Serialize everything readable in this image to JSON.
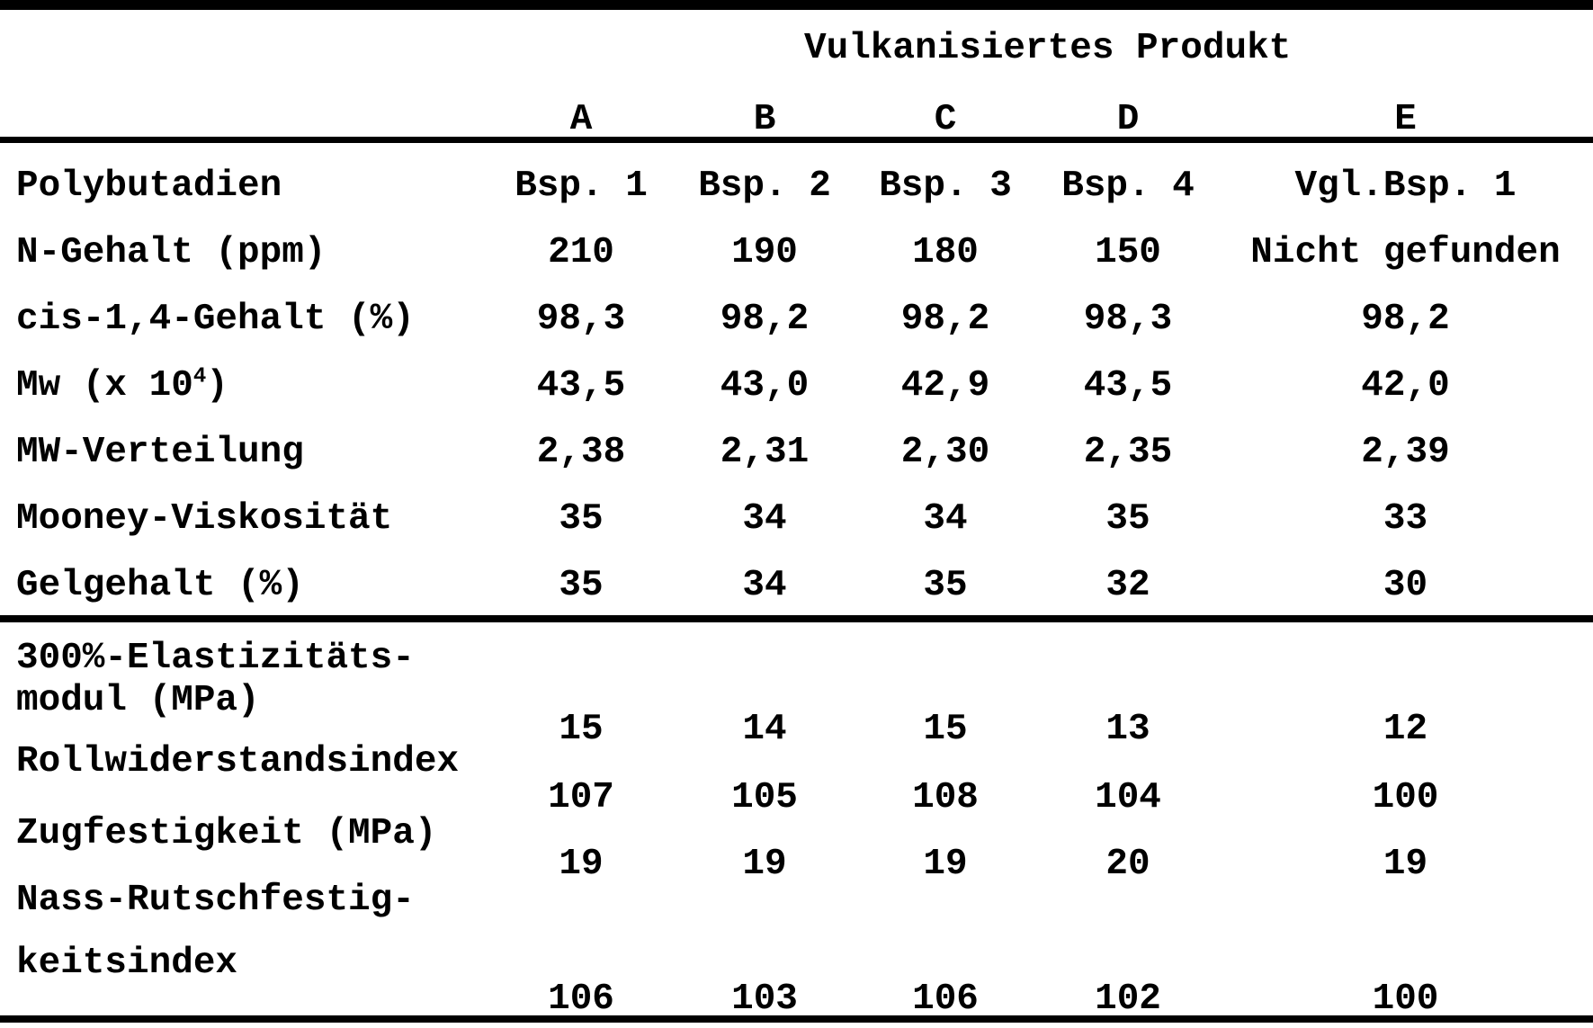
{
  "table": {
    "title": "Vulkanisiertes Produkt",
    "column_letters": [
      "A",
      "B",
      "C",
      "D",
      "E"
    ],
    "section1_rows": [
      {
        "label": "Polybutadien",
        "values": [
          "Bsp. 1",
          "Bsp. 2",
          "Bsp. 3",
          "Bsp. 4",
          "Vgl.Bsp. 1"
        ]
      },
      {
        "label": "N-Gehalt (ppm)",
        "values": [
          "210",
          "190",
          "180",
          "150",
          "Nicht gefunden"
        ]
      },
      {
        "label": "cis-1,4-Gehalt (%)",
        "values": [
          "98,3",
          "98,2",
          "98,2",
          "98,3",
          "98,2"
        ]
      },
      {
        "label_pre": "Mw (x 10",
        "label_sup": "4",
        "label_post": ")",
        "values": [
          "43,5",
          "43,0",
          "42,9",
          "43,5",
          "42,0"
        ]
      },
      {
        "label": "MW-Verteilung",
        "values": [
          "2,38",
          "2,31",
          "2,30",
          "2,35",
          "2,39"
        ]
      },
      {
        "label": "Mooney-Viskosität",
        "values": [
          "35",
          "34",
          "34",
          "35",
          "33"
        ]
      },
      {
        "label": "Gelgehalt (%)",
        "values": [
          "35",
          "34",
          "35",
          "32",
          "30"
        ]
      }
    ],
    "section2_rows": [
      {
        "label_line1": "300%-Elastizitäts-",
        "label_line2": "modul (MPa)",
        "values": [
          "15",
          "14",
          "15",
          "13",
          "12"
        ]
      },
      {
        "label_line1": "Rollwiderstandsindex",
        "values": [
          "107",
          "105",
          "108",
          "104",
          "100"
        ]
      },
      {
        "label_line1": "Zugfestigkeit (MPa)",
        "values": [
          "19",
          "19",
          "19",
          "20",
          "19"
        ]
      },
      {
        "label_line1": "Nass-Rutschfestig-",
        "label_line2": "keitsindex",
        "values": [
          "106",
          "103",
          "106",
          "102",
          "100"
        ]
      }
    ]
  }
}
